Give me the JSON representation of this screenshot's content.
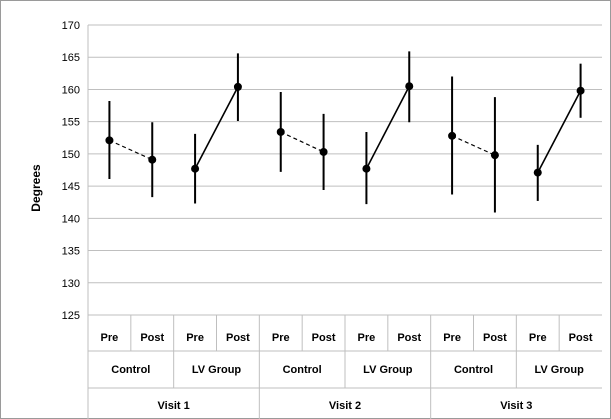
{
  "chart_data": {
    "type": "scatter",
    "title": "",
    "ylabel": "Degrees",
    "xlabel": "",
    "ylim": [
      125,
      170
    ],
    "ytick_step": 5,
    "yticks": [
      "125",
      "130",
      "135",
      "140",
      "145",
      "150",
      "155",
      "160",
      "165",
      "170"
    ],
    "grid": "horizontal",
    "legend": "none",
    "categories": [
      "Pre",
      "Post",
      "Pre",
      "Post",
      "Pre",
      "Post",
      "Pre",
      "Post",
      "Pre",
      "Post",
      "Pre",
      "Post"
    ],
    "groups": [
      "Control",
      "LV Group",
      "Control",
      "LV Group",
      "Control",
      "LV Group"
    ],
    "visits": [
      "Visit 1",
      "Visit 2",
      "Visit 3"
    ],
    "means": [
      152.1,
      149.1,
      147.7,
      160.4,
      153.4,
      150.3,
      147.7,
      160.5,
      152.8,
      149.8,
      147.1,
      159.8
    ],
    "error_low": [
      146.1,
      143.3,
      142.3,
      155.1,
      147.2,
      144.4,
      142.2,
      154.9,
      143.7,
      140.9,
      142.7,
      155.6
    ],
    "error_high": [
      158.2,
      154.9,
      153.1,
      165.6,
      159.6,
      156.2,
      153.4,
      165.9,
      162.0,
      158.8,
      151.4,
      164.0
    ],
    "connector_styles": [
      "dashed",
      "solid",
      "dashed",
      "solid",
      "dashed",
      "solid"
    ],
    "colors": {
      "marker": "#000000",
      "grid": "#bfbfbf",
      "frame": "#9a9a9a"
    }
  }
}
